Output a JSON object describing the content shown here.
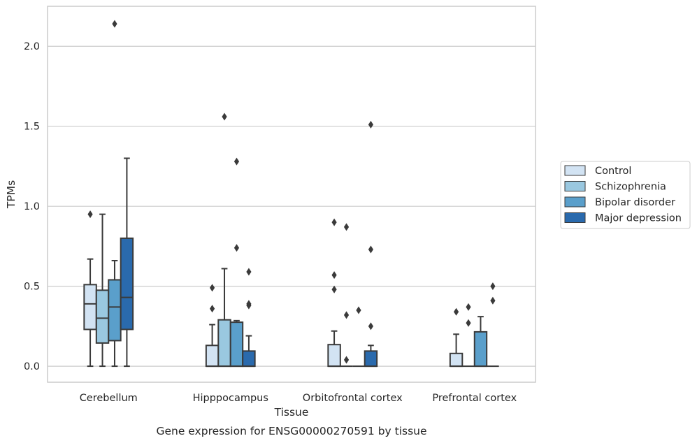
{
  "chart_data": {
    "type": "box",
    "title": "",
    "caption": "Gene expression for ENSG00000270591 by tissue",
    "xlabel": "Tissue",
    "ylabel": "TPMs",
    "ylim": [
      -0.1,
      2.25
    ],
    "yticks": [
      0.0,
      0.5,
      1.0,
      1.5,
      2.0
    ],
    "ytick_labels": [
      "0.0",
      "0.5",
      "1.0",
      "1.5",
      "2.0"
    ],
    "grid": "horizontal",
    "legend_position": "right",
    "categories": [
      "Cerebellum",
      "Hipppocampus",
      "Orbitofrontal cortex",
      "Prefrontal cortex"
    ],
    "series": [
      {
        "name": "Control",
        "color": "#d2e3f3",
        "boxes": [
          {
            "whislo": 0.0,
            "q1": 0.23,
            "med": 0.39,
            "q3": 0.51,
            "whishi": 0.67,
            "fliers": [
              0.95
            ]
          },
          {
            "whislo": 0.0,
            "q1": 0.0,
            "med": 0.0,
            "q3": 0.13,
            "whishi": 0.26,
            "fliers": [
              0.36,
              0.49
            ]
          },
          {
            "whislo": 0.0,
            "q1": 0.0,
            "med": 0.0,
            "q3": 0.135,
            "whishi": 0.22,
            "fliers": [
              0.48,
              0.57,
              0.9
            ]
          },
          {
            "whislo": 0.0,
            "q1": 0.0,
            "med": 0.0,
            "q3": 0.08,
            "whishi": 0.2,
            "fliers": [
              0.34
            ]
          }
        ]
      },
      {
        "name": "Schizophrenia",
        "color": "#9ac8e0",
        "boxes": [
          {
            "whislo": 0.0,
            "q1": 0.145,
            "med": 0.3,
            "q3": 0.475,
            "whishi": 0.95,
            "fliers": []
          },
          {
            "whislo": 0.0,
            "q1": 0.0,
            "med": 0.0,
            "q3": 0.29,
            "whishi": 0.61,
            "fliers": [
              1.56
            ]
          },
          {
            "whislo": 0.0,
            "q1": 0.0,
            "med": 0.0,
            "q3": 0.0,
            "whishi": 0.0,
            "fliers": [
              0.04,
              0.32,
              0.87
            ]
          },
          {
            "whislo": 0.0,
            "q1": 0.0,
            "med": 0.0,
            "q3": 0.0,
            "whishi": 0.0,
            "fliers": [
              0.27,
              0.37
            ]
          }
        ]
      },
      {
        "name": "Bipolar disorder",
        "color": "#5a9fcb",
        "boxes": [
          {
            "whislo": 0.0,
            "q1": 0.16,
            "med": 0.37,
            "q3": 0.54,
            "whishi": 0.66,
            "fliers": [
              2.14
            ]
          },
          {
            "whislo": 0.0,
            "q1": 0.0,
            "med": 0.0,
            "q3": 0.275,
            "whishi": 0.285,
            "fliers": [
              0.74,
              1.28
            ]
          },
          {
            "whislo": 0.0,
            "q1": 0.0,
            "med": 0.0,
            "q3": 0.0,
            "whishi": 0.0,
            "fliers": [
              0.35
            ]
          },
          {
            "whislo": 0.0,
            "q1": 0.0,
            "med": 0.0,
            "q3": 0.215,
            "whishi": 0.31,
            "fliers": []
          }
        ]
      },
      {
        "name": "Major depression",
        "color": "#2a6aad",
        "boxes": [
          {
            "whislo": 0.0,
            "q1": 0.23,
            "med": 0.43,
            "q3": 0.8,
            "whishi": 1.3,
            "fliers": []
          },
          {
            "whislo": 0.0,
            "q1": 0.0,
            "med": 0.0,
            "q3": 0.095,
            "whishi": 0.19,
            "fliers": [
              0.38,
              0.39,
              0.59
            ]
          },
          {
            "whislo": 0.0,
            "q1": 0.0,
            "med": 0.0,
            "q3": 0.095,
            "whishi": 0.13,
            "fliers": [
              0.25,
              0.73,
              1.51
            ]
          },
          {
            "whislo": 0.0,
            "q1": 0.0,
            "med": 0.0,
            "q3": 0.0,
            "whishi": 0.0,
            "fliers": [
              0.41,
              0.5
            ]
          }
        ]
      }
    ]
  }
}
